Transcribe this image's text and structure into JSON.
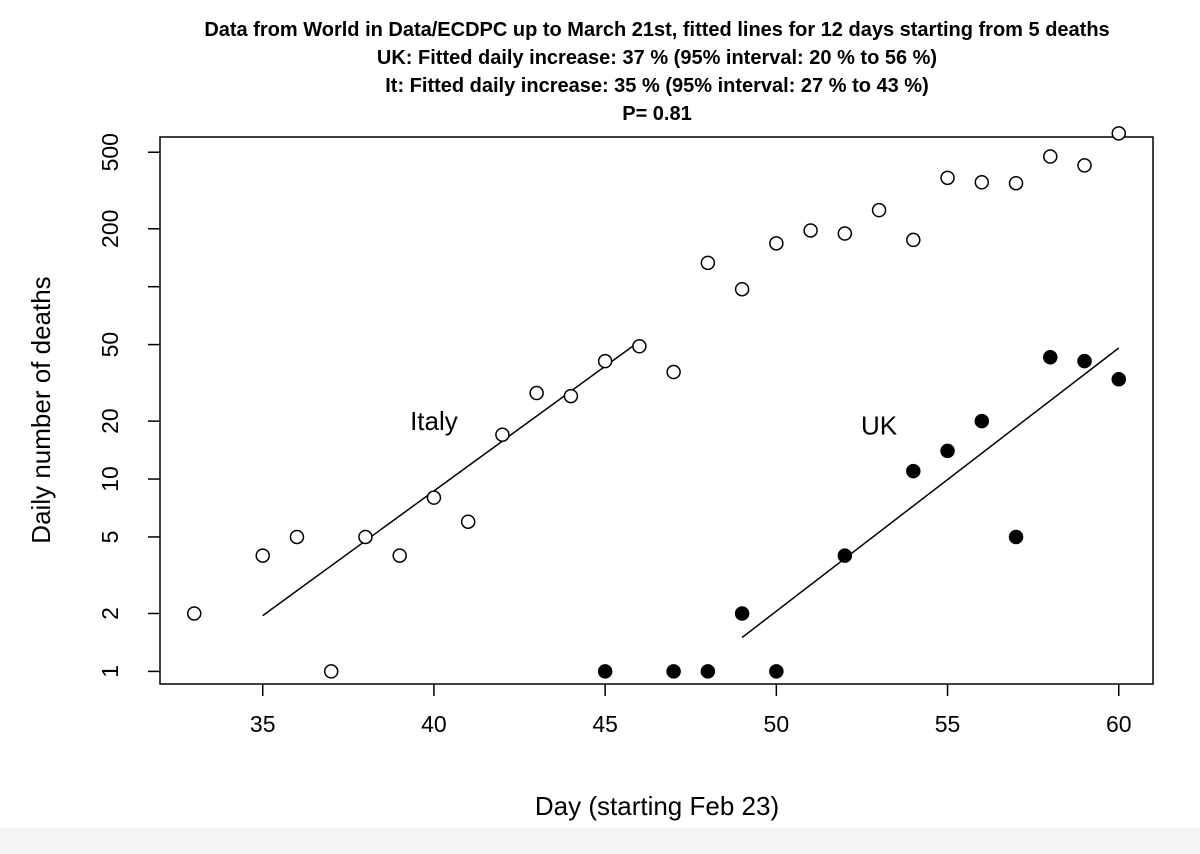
{
  "chart_data": {
    "type": "scatter",
    "title_lines": [
      "Data from World in Data/ECDPC up to March 21st, fitted lines for 12 days starting from 5 deaths",
      "UK: Fitted daily increase: 37 %  (95% interval: 20 % to 56 %)",
      "It: Fitted daily increase: 35 %  (95% interval: 27 % to 43 %)",
      "P= 0.81"
    ],
    "xlabel": "Day (starting Feb 23)",
    "ylabel": "Daily number of deaths",
    "xlim": [
      32,
      61
    ],
    "ylim": [
      0.86,
      600
    ],
    "yscale": "log",
    "grid": false,
    "legend": "none",
    "xticks": [
      35,
      40,
      45,
      50,
      55,
      60
    ],
    "yticks": [
      1,
      2,
      5,
      10,
      20,
      50,
      100,
      200,
      500
    ],
    "ytick_labels": [
      "1",
      "2",
      "5",
      "10",
      "20",
      "50",
      "",
      "200",
      "500"
    ],
    "annotations": [
      {
        "text": "Italy",
        "x": 40,
        "y": 20
      },
      {
        "text": "UK",
        "x": 53,
        "y": 19
      }
    ],
    "series": [
      {
        "marker": "open-circle",
        "x": [
          33,
          35,
          36,
          37,
          38,
          39,
          40,
          41,
          42,
          43,
          44,
          45,
          46,
          47,
          48,
          49,
          50,
          51,
          52,
          53,
          54,
          55,
          56,
          57,
          58,
          59,
          60
        ],
        "y": [
          2,
          4,
          5,
          1,
          5,
          4,
          8,
          6,
          17,
          28,
          27,
          41,
          49,
          36,
          133,
          97,
          168,
          196,
          189,
          250,
          175,
          368,
          349,
          345,
          475,
          427,
          627
        ],
        "fit": {
          "x": [
            35,
            46
          ],
          "y": [
            1.95,
            52
          ]
        }
      },
      {
        "marker": "filled-circle",
        "x": [
          45,
          47,
          48,
          49,
          50,
          52,
          54,
          55,
          56,
          57,
          58,
          59,
          60
        ],
        "y": [
          1,
          1,
          1,
          2,
          1,
          4,
          11,
          14,
          20,
          5,
          43,
          41,
          33
        ],
        "fit": {
          "x": [
            49,
            60
          ],
          "y": [
            1.5,
            48
          ]
        }
      }
    ]
  }
}
